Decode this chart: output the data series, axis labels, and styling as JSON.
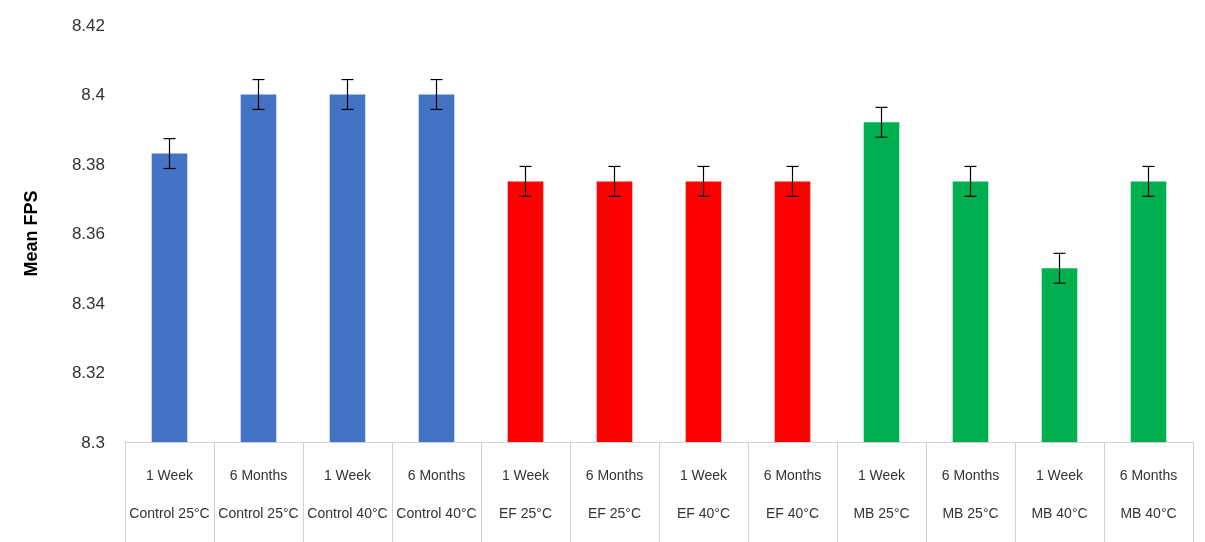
{
  "chart_data": {
    "type": "bar",
    "ylabel": "Mean FPS",
    "categories": [
      "1 Week\nControl 25°C",
      "6 Months\nControl 25°C",
      "1 Week\nControl 40°C",
      "6 Months\nControl 40°C",
      "1 Week\nEF 25°C",
      "6 Months\nEF 25°C",
      "1 Week\nEF 40°C",
      "6 Months\nEF 40°C",
      "1 Week\nMB 25°C",
      "6 Months\nMB 25°C",
      "1 Week\nMB 40°C",
      "6 Months\nMB 40°C"
    ],
    "values": [
      8.383,
      8.4,
      8.4,
      8.4,
      8.375,
      8.375,
      8.375,
      8.375,
      8.392,
      8.375,
      8.35,
      8.375
    ],
    "errors": [
      0.0043,
      0.0043,
      0.0043,
      0.0043,
      0.0043,
      0.0043,
      0.0043,
      0.0043,
      0.0043,
      0.0043,
      0.0043,
      0.0043
    ],
    "colors": [
      "#4472c4",
      "#4472c4",
      "#4472c4",
      "#4472c4",
      "#ff0000",
      "#ff0000",
      "#ff0000",
      "#ff0000",
      "#00b050",
      "#00b050",
      "#00b050",
      "#00b050"
    ],
    "ylim": [
      8.3,
      8.42
    ],
    "yticks": [
      8.3,
      8.32,
      8.34,
      8.36,
      8.38,
      8.4,
      8.42
    ],
    "grid": false
  }
}
